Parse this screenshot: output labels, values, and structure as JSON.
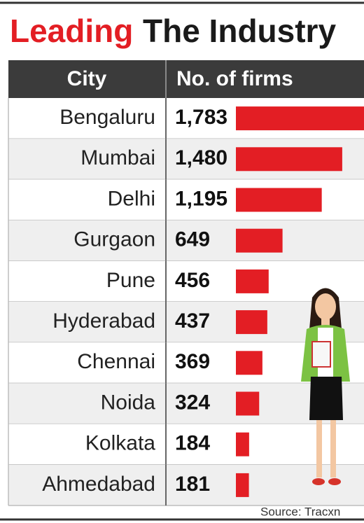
{
  "chart_data": {
    "type": "bar",
    "title": {
      "lead": "Leading",
      "rest": "The Industry"
    },
    "headers": [
      "City",
      "No. of firms"
    ],
    "categories": [
      "Bengaluru",
      "Mumbai",
      "Delhi",
      "Gurgaon",
      "Pune",
      "Hyderabad",
      "Chennai",
      "Noida",
      "Kolkata",
      "Ahmedabad"
    ],
    "values": [
      1783,
      1480,
      1195,
      649,
      456,
      437,
      369,
      324,
      184,
      181
    ],
    "value_labels": [
      "1,783",
      "1,480",
      "1,195",
      "649",
      "456",
      "437",
      "369",
      "324",
      "184",
      "181"
    ],
    "color": "#e31e24",
    "source": "Source: Tracxn"
  }
}
